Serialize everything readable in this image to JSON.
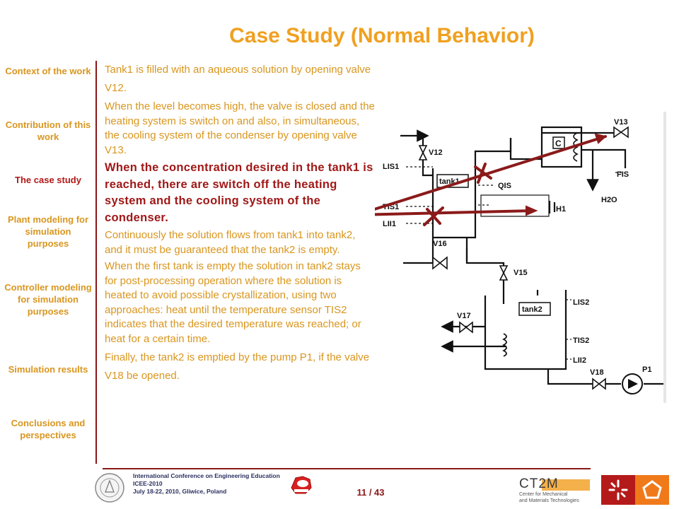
{
  "slide": {
    "title": "Case Study (Normal Behavior)",
    "page": "11 / 43"
  },
  "nav": {
    "items": [
      {
        "label": "Context of the work"
      },
      {
        "label": "Contribution of this work"
      },
      {
        "label": "The case study"
      },
      {
        "label": "Plant modeling for simulation purposes"
      },
      {
        "label": "Controller modeling for simulation purposes"
      },
      {
        "label": "Simulation results"
      },
      {
        "label": "Conclusions and perspectives"
      }
    ],
    "active_label": "The case study"
  },
  "content": {
    "paragraphs": [
      {
        "text": "Tank1 is filled with an aqueous solution by opening valve V12."
      },
      {
        "text": "When the level becomes high, the valve is closed and the heating system is switch on and also, in simultaneous, the cooling system of the condenser by opening valve V13."
      },
      {
        "text": "When the concentration desired in the tank1 is reached, there are switch off the heating system and the cooling system of the condenser."
      },
      {
        "text": "Continuously the solution flows from tank1 into tank2, and it must be guaranteed that the tank2 is empty."
      },
      {
        "text": "When the first tank is empty the solution in tank2 stays for post-processing operation where the solution is heated to avoid possible crystallization, using two approaches: heat until the temperature sensor TIS2 indicates that the desired temperature was reached; or heat for a certain time."
      },
      {
        "text": "Finally, the tank2 is emptied by the pump P1, if the valve V18 be opened."
      }
    ]
  },
  "diagram": {
    "labels": {
      "v13": "V13",
      "c": "C",
      "v12": "V12",
      "lis1": "LIS1",
      "tank1": "tank1",
      "qis": "QIS",
      "fis": "FIS",
      "h2o": "H2O",
      "tis1": "TIS1",
      "h1": "H1",
      "lii1": "LII1",
      "v16": "V16",
      "v15": "V15",
      "tank2": "tank2",
      "lis2": "LIS2",
      "v17": "V17",
      "tis2": "TIS2",
      "lii2": "LII2",
      "v18": "V18",
      "p1": "P1"
    }
  },
  "footer": {
    "conference": [
      "International Conference on Engineering Education",
      "ICEE-2010",
      "July 18-22, 2010, Gliwice, Poland"
    ],
    "logo_text": "CT2M",
    "logo_subtitle": [
      "Center for Mechanical",
      "and Materials Technologies"
    ]
  },
  "colors": {
    "title": "#f0a020",
    "nav": "#d9961f",
    "nav_active": "#b01818",
    "emphasis": "#a01818",
    "arrow": "#8b1a1a",
    "rule": "#8a1818"
  }
}
